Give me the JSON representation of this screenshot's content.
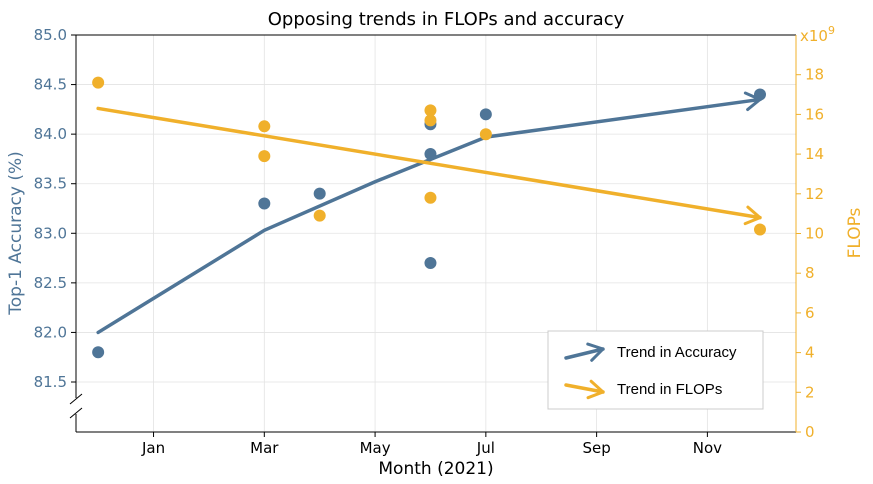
{
  "chart_data": {
    "type": "scatter",
    "title": "Opposing trends in FLOPs and accuracy",
    "xlabel": "Month (2021)",
    "ylabel_left": "Top-1 Accuracy (%)",
    "ylabel_right": "FLOPs",
    "right_axis_multiplier": "x10",
    "right_axis_multiplier_exponent": "9",
    "x_ticks": [
      {
        "label": "Jan",
        "value": 1.0
      },
      {
        "label": "Mar",
        "value": 3.0
      },
      {
        "label": "May",
        "value": 5.0
      },
      {
        "label": "Jul",
        "value": 7.0
      },
      {
        "label": "Sep",
        "value": 9.0
      },
      {
        "label": "Nov",
        "value": 11.0
      }
    ],
    "xlim": [
      -0.4,
      12.6
    ],
    "y_left_ticks": [
      81.5,
      82.0,
      82.5,
      83.0,
      83.5,
      84.0,
      84.5,
      85.0
    ],
    "y_left_tick_labels": [
      "81.5",
      "82.0",
      "82.5",
      "83.0",
      "83.5",
      "84.0",
      "84.5",
      "85.0"
    ],
    "y_left_lim": [
      81.5,
      85.0
    ],
    "y_right_ticks": [
      0,
      2,
      4,
      6,
      8,
      10,
      12,
      14,
      16,
      18
    ],
    "y_right_tick_labels": [
      "0",
      "2",
      "4",
      "6",
      "8",
      "10",
      "12",
      "14",
      "16",
      "18"
    ],
    "y_right_lim": [
      0,
      20
    ],
    "grid": true,
    "legend_position": "bottom-right",
    "colors": {
      "accuracy": "#4f7597",
      "flops": "#f0b02b",
      "grid": "#e3e3e3"
    },
    "series": [
      {
        "name": "Accuracy",
        "axis": "left",
        "points": [
          {
            "x": 0.0,
            "y": 81.8
          },
          {
            "x": 3.0,
            "y": 83.3
          },
          {
            "x": 4.0,
            "y": 83.4
          },
          {
            "x": 6.0,
            "y": 84.1
          },
          {
            "x": 6.0,
            "y": 83.8
          },
          {
            "x": 6.0,
            "y": 82.7
          },
          {
            "x": 7.0,
            "y": 84.2
          },
          {
            "x": 11.95,
            "y": 84.4
          }
        ]
      },
      {
        "name": "FLOPs",
        "axis": "right",
        "points": [
          {
            "x": 0.0,
            "y": 17.6
          },
          {
            "x": 3.0,
            "y": 15.4
          },
          {
            "x": 3.0,
            "y": 13.9
          },
          {
            "x": 4.0,
            "y": 10.9
          },
          {
            "x": 6.0,
            "y": 16.2
          },
          {
            "x": 6.0,
            "y": 15.7
          },
          {
            "x": 6.0,
            "y": 11.8
          },
          {
            "x": 7.0,
            "y": 15.0
          },
          {
            "x": 11.95,
            "y": 10.2
          }
        ]
      }
    ],
    "trends": [
      {
        "name": "Trend in Accuracy",
        "axis": "left",
        "color": "#4f7597",
        "points": [
          {
            "x": 0.0,
            "y": 82.0
          },
          {
            "x": 3.0,
            "y": 83.03
          },
          {
            "x": 5.0,
            "y": 83.52
          },
          {
            "x": 7.0,
            "y": 83.97
          },
          {
            "x": 11.95,
            "y": 84.35
          }
        ]
      },
      {
        "name": "Trend in FLOPs",
        "axis": "right",
        "color": "#f0b02b",
        "points": [
          {
            "x": 0.0,
            "y": 16.3
          },
          {
            "x": 11.95,
            "y": 10.8
          }
        ]
      }
    ]
  }
}
